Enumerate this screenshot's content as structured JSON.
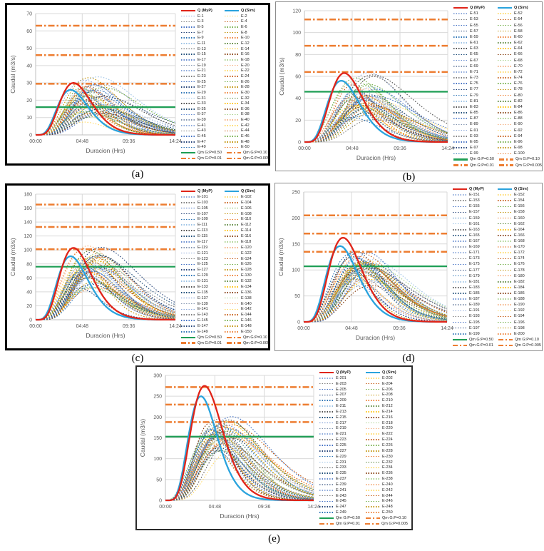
{
  "figure": {
    "captions": [
      "(a)",
      "(b)",
      "(c)",
      "(d)",
      "(e)"
    ],
    "background": "#ffffff"
  },
  "shared": {
    "xlabel": "Duracion (Hrs)",
    "ylabel": "Caudal (m3/s)",
    "xtick_labels": [
      "00:00",
      "04:48",
      "09:36",
      "14:24"
    ],
    "xtick_hours": [
      0,
      4.8,
      9.6,
      14.4
    ],
    "x_max_hours": 14.4,
    "main_series_labels": [
      "Q (MyP)",
      "Q (Sim)"
    ],
    "qm_labels": [
      "Qm G:P=0.50",
      "Qm G:P=0.10",
      "Qm G:P=0.01",
      "Qm G:P=0.005"
    ],
    "colors": {
      "q_myp": "#e02419",
      "q_sim": "#2aa3dd",
      "qm_median_green": "#1d9e54",
      "qm_orange": "#ed7d31",
      "grid": "#d9d9d9",
      "axis_line": "#bfbfbf",
      "axis_text": "#595959",
      "ensemble_cool": [
        "#8eaadb",
        "#7f7f7f",
        "#4472c4",
        "#264478",
        "#2e75b6",
        "#9dc3e6",
        "#525252",
        "#1f4e79",
        "#698ed0",
        "#8496b0"
      ],
      "ensemble_warm": [
        "#ffd966",
        "#c55a11",
        "#70ad47",
        "#bf8f00",
        "#ed7d31",
        "#548235",
        "#ffc000",
        "#843c0c",
        "#a9d18e",
        "#f4b183"
      ]
    }
  },
  "chart_data": [
    {
      "panel": "a",
      "type": "line",
      "xlabel": "Duracion (Hrs)",
      "ylabel": "Caudal (m3/s)",
      "ylim": [
        0,
        70
      ],
      "ytick_step": 10,
      "series": [
        {
          "name": "Q (MyP)",
          "peak": 30,
          "t_peak_hr": 3.9,
          "shape": 5.5,
          "color": "#e02419",
          "style": "solid"
        },
        {
          "name": "Q (Sim)",
          "peak": 26,
          "t_peak_hr": 3.6,
          "shape": 5.0,
          "color": "#2aa3dd",
          "style": "solid"
        }
      ],
      "hlines": [
        {
          "name": "Qm G:P=0.50",
          "value": 16,
          "color": "#1d9e54",
          "style": "solid"
        },
        {
          "name": "Qm G:P=0.10",
          "value": 29.5,
          "color": "#ed7d31",
          "style": "dashdot"
        },
        {
          "name": "Qm G:P=0.01",
          "value": 46,
          "color": "#ed7d31",
          "style": "dashdot"
        },
        {
          "name": "Qm G:P=0.005",
          "value": 63,
          "color": "#ed7d31",
          "style": "dashdot"
        }
      ],
      "ensemble": {
        "style": "dotted",
        "peak_range": [
          5,
          35
        ],
        "t_peak_range": [
          4.6,
          7.2
        ],
        "labels": [
          "E-1",
          "E-2",
          "E-3",
          "E-4",
          "E-5",
          "E-6",
          "E-7",
          "E-8",
          "E-9",
          "E-10",
          "E-11",
          "E-12",
          "E-13",
          "E-14",
          "E-15",
          "E-16",
          "E-17",
          "E-18",
          "E-19",
          "E-20",
          "E-21",
          "E-22",
          "E-23",
          "E-24",
          "E-25",
          "E-26",
          "E-27",
          "E-28",
          "E-29",
          "E-30",
          "E-31",
          "E-32",
          "E-33",
          "E-34",
          "E-35",
          "E-36",
          "E-37",
          "E-38",
          "E-39",
          "E-40",
          "E-41",
          "E-42",
          "E-43",
          "E-44",
          "E-45",
          "E-46",
          "E-47",
          "E-48",
          "E-49",
          "E-50"
        ]
      }
    },
    {
      "panel": "b",
      "type": "line",
      "xlabel": "Duracion (Hrs)",
      "ylabel": "Caudal (m3/s)",
      "ylim": [
        0,
        120
      ],
      "ytick_step": 20,
      "series": [
        {
          "name": "Q (MyP)",
          "peak": 63,
          "t_peak_hr": 4.0,
          "shape": 5.5,
          "color": "#e02419",
          "style": "solid"
        },
        {
          "name": "Q (Sim)",
          "peak": 56,
          "t_peak_hr": 3.7,
          "shape": 5.0,
          "color": "#2aa3dd",
          "style": "solid"
        }
      ],
      "hlines": [
        {
          "name": "Qm G:P=0.50",
          "value": 46,
          "color": "#1d9e54",
          "style": "solid"
        },
        {
          "name": "Qm G:P=0.10",
          "value": 64,
          "color": "#ed7d31",
          "style": "dashdot"
        },
        {
          "name": "Qm G:P=0.01",
          "value": 88,
          "color": "#ed7d31",
          "style": "dashdot"
        },
        {
          "name": "Qm G:P=0.005",
          "value": 112,
          "color": "#ed7d31",
          "style": "dashdot"
        }
      ],
      "ensemble": {
        "style": "dotted",
        "peak_range": [
          15,
          68
        ],
        "t_peak_range": [
          4.6,
          7.2
        ],
        "labels": [
          "E-51",
          "E-52",
          "E-53",
          "E-54",
          "E-55",
          "E-56",
          "E-57",
          "E-58",
          "E-59",
          "E-60",
          "E-61",
          "E-62",
          "E-63",
          "E-64",
          "E-65",
          "E-66",
          "E-67",
          "E-68",
          "E-69",
          "E-70",
          "E-71",
          "E-72",
          "E-73",
          "E-74",
          "E-75",
          "E-76",
          "E-77",
          "E-78",
          "E-79",
          "E-80",
          "E-81",
          "E-82",
          "E-83",
          "E-84",
          "E-85",
          "E-86",
          "E-87",
          "E-88",
          "E-89",
          "E-90",
          "E-91",
          "E-92",
          "E-93",
          "E-94",
          "E-95",
          "E-96",
          "E-97",
          "E-98",
          "E-99",
          "E-100"
        ]
      }
    },
    {
      "panel": "c",
      "type": "line",
      "xlabel": "Duracion (Hrs)",
      "ylabel": "Caudal (m3/s)",
      "ylim": [
        0,
        180
      ],
      "ytick_step": 20,
      "series": [
        {
          "name": "Q (MyP)",
          "peak": 103,
          "t_peak_hr": 3.9,
          "shape": 5.5,
          "color": "#e02419",
          "style": "solid"
        },
        {
          "name": "Q (Sim)",
          "peak": 91,
          "t_peak_hr": 3.6,
          "shape": 5.0,
          "color": "#2aa3dd",
          "style": "solid"
        }
      ],
      "hlines": [
        {
          "name": "Qm G:P=0.50",
          "value": 76,
          "color": "#1d9e54",
          "style": "solid"
        },
        {
          "name": "Qm G:P=0.10",
          "value": 101,
          "color": "#ed7d31",
          "style": "dashdot"
        },
        {
          "name": "Qm G:P=0.01",
          "value": 133,
          "color": "#ed7d31",
          "style": "dashdot"
        },
        {
          "name": "Qm G:P=0.005",
          "value": 165,
          "color": "#ed7d31",
          "style": "dashdot"
        }
      ],
      "ensemble": {
        "style": "dotted",
        "peak_range": [
          38,
          108
        ],
        "t_peak_range": [
          4.5,
          7.0
        ],
        "labels": [
          "E-101",
          "E-102",
          "E-103",
          "E-104",
          "E-105",
          "E-106",
          "E-107",
          "E-108",
          "E-109",
          "E-110",
          "E-111",
          "E-112",
          "E-113",
          "E-114",
          "E-115",
          "E-116",
          "E-117",
          "E-118",
          "E-119",
          "E-120",
          "E-121",
          "E-122",
          "E-123",
          "E-124",
          "E-125",
          "E-126",
          "E-127",
          "E-128",
          "E-129",
          "E-130",
          "E-131",
          "E-132",
          "E-133",
          "E-134",
          "E-135",
          "E-136",
          "E-137",
          "E-138",
          "E-139",
          "E-140",
          "E-141",
          "E-142",
          "E-143",
          "E-144",
          "E-145",
          "E-146",
          "E-147",
          "E-148",
          "E-149",
          "E-150"
        ]
      }
    },
    {
      "panel": "d",
      "type": "line",
      "xlabel": "Duracion (Hrs)",
      "ylabel": "Caudal (m3/s)",
      "ylim": [
        0,
        250
      ],
      "ytick_step": 50,
      "series": [
        {
          "name": "Q (MyP)",
          "peak": 162,
          "t_peak_hr": 3.95,
          "shape": 5.5,
          "color": "#e02419",
          "style": "solid"
        },
        {
          "name": "Q (Sim)",
          "peak": 146,
          "t_peak_hr": 3.65,
          "shape": 5.0,
          "color": "#2aa3dd",
          "style": "solid"
        }
      ],
      "hlines": [
        {
          "name": "Qm G:P=0.50",
          "value": 107,
          "color": "#1d9e54",
          "style": "solid"
        },
        {
          "name": "Qm G:P=0.10",
          "value": 135,
          "color": "#ed7d31",
          "style": "dashdot"
        },
        {
          "name": "Qm G:P=0.01",
          "value": 170,
          "color": "#ed7d31",
          "style": "dashdot"
        },
        {
          "name": "Qm G:P=0.005",
          "value": 205,
          "color": "#ed7d31",
          "style": "dashdot"
        }
      ],
      "ensemble": {
        "style": "dotted",
        "peak_range": [
          63,
          143
        ],
        "t_peak_range": [
          4.5,
          7.0
        ],
        "labels": [
          "E-151",
          "E-152",
          "E-153",
          "E-154",
          "E-155",
          "E-156",
          "E-157",
          "E-158",
          "E-159",
          "E-160",
          "E-161",
          "E-162",
          "E-163",
          "E-164",
          "E-165",
          "E-166",
          "E-167",
          "E-168",
          "E-169",
          "E-170",
          "E-171",
          "E-172",
          "E-173",
          "E-174",
          "E-175",
          "E-176",
          "E-177",
          "E-178",
          "E-179",
          "E-180",
          "E-181",
          "E-182",
          "E-183",
          "E-184",
          "E-185",
          "E-186",
          "E-187",
          "E-188",
          "E-189",
          "E-190",
          "E-191",
          "E-192",
          "E-193",
          "E-194",
          "E-195",
          "E-196",
          "E-197",
          "E-198",
          "E-199",
          "E-200"
        ]
      }
    },
    {
      "panel": "e",
      "type": "line",
      "xlabel": "Duracion (Hrs)",
      "ylabel": "Caudal (m3/s)",
      "ylim": [
        0,
        300
      ],
      "ytick_step": 50,
      "series": [
        {
          "name": "Q (MyP)",
          "peak": 275,
          "t_peak_hr": 3.8,
          "shape": 6.0,
          "color": "#e02419",
          "style": "solid"
        },
        {
          "name": "Q (Sim)",
          "peak": 250,
          "t_peak_hr": 3.45,
          "shape": 6.0,
          "color": "#2aa3dd",
          "style": "solid"
        }
      ],
      "hlines": [
        {
          "name": "Qm G:P=0.50",
          "value": 153,
          "color": "#1d9e54",
          "style": "solid"
        },
        {
          "name": "Qm G:P=0.10",
          "value": 188,
          "color": "#ed7d31",
          "style": "dashdot"
        },
        {
          "name": "Qm G:P=0.01",
          "value": 230,
          "color": "#ed7d31",
          "style": "dashdot"
        },
        {
          "name": "Qm G:P=0.005",
          "value": 272,
          "color": "#ed7d31",
          "style": "dashdot"
        }
      ],
      "ensemble": {
        "style": "dotted",
        "peak_range": [
          112,
          205
        ],
        "t_peak_range": [
          4.3,
          6.6
        ],
        "labels": [
          "E-201",
          "E-202",
          "E-203",
          "E-204",
          "E-205",
          "E-206",
          "E-207",
          "E-208",
          "E-209",
          "E-210",
          "E-211",
          "E-212",
          "E-213",
          "E-214",
          "E-215",
          "E-216",
          "E-217",
          "E-218",
          "E-219",
          "E-220",
          "E-221",
          "E-222",
          "E-223",
          "E-224",
          "E-225",
          "E-226",
          "E-227",
          "E-228",
          "E-229",
          "E-230",
          "E-231",
          "E-232",
          "E-233",
          "E-234",
          "E-235",
          "E-236",
          "E-237",
          "E-238",
          "E-239",
          "E-240",
          "E-241",
          "E-242",
          "E-243",
          "E-244",
          "E-245",
          "E-246",
          "E-247",
          "E-248",
          "E-249",
          "E-250"
        ]
      }
    }
  ]
}
